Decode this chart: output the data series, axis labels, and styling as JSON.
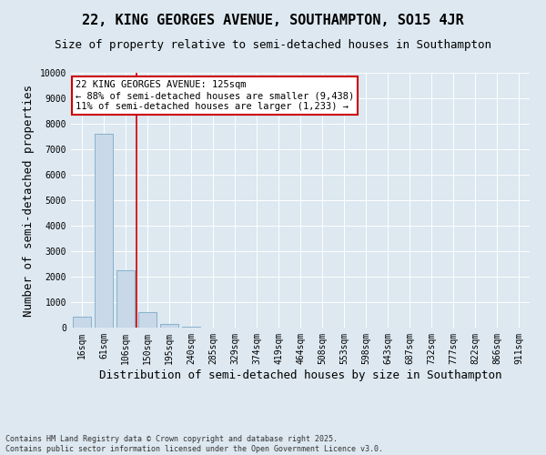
{
  "title": "22, KING GEORGES AVENUE, SOUTHAMPTON, SO15 4JR",
  "subtitle": "Size of property relative to semi-detached houses in Southampton",
  "xlabel": "Distribution of semi-detached houses by size in Southampton",
  "ylabel": "Number of semi-detached properties",
  "categories": [
    "16sqm",
    "61sqm",
    "106sqm",
    "150sqm",
    "195sqm",
    "240sqm",
    "285sqm",
    "329sqm",
    "374sqm",
    "419sqm",
    "464sqm",
    "508sqm",
    "553sqm",
    "598sqm",
    "643sqm",
    "687sqm",
    "732sqm",
    "777sqm",
    "822sqm",
    "866sqm",
    "911sqm"
  ],
  "values": [
    430,
    7600,
    2250,
    600,
    130,
    50,
    0,
    0,
    0,
    0,
    0,
    0,
    0,
    0,
    0,
    0,
    0,
    0,
    0,
    0,
    0
  ],
  "bar_color": "#c8d8e8",
  "bar_edge_color": "#7aaac8",
  "property_line_x": 2.5,
  "property_size": "125sqm",
  "pct_smaller": 88,
  "n_smaller": 9438,
  "pct_larger": 11,
  "n_larger": 1233,
  "annotation_box_color": "#cc0000",
  "background_color": "#dde8f0",
  "grid_color": "#ffffff",
  "ylim": [
    0,
    10000
  ],
  "yticks": [
    0,
    1000,
    2000,
    3000,
    4000,
    5000,
    6000,
    7000,
    8000,
    9000,
    10000
  ],
  "footer": "Contains HM Land Registry data © Crown copyright and database right 2025.\nContains public sector information licensed under the Open Government Licence v3.0.",
  "title_fontsize": 11,
  "subtitle_fontsize": 9,
  "tick_fontsize": 7,
  "label_fontsize": 9
}
